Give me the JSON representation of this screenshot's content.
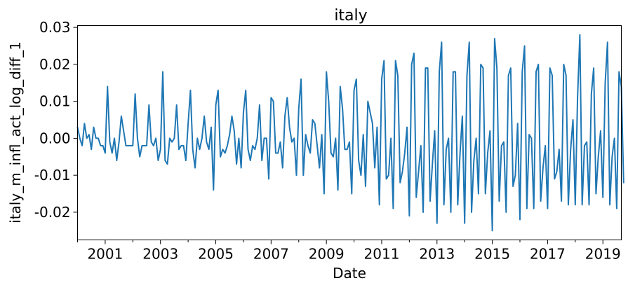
{
  "chart_data": {
    "type": "line",
    "title": "italy",
    "xlabel": "Date",
    "ylabel": "italy_m_infl_act_log_diff_1",
    "xlim": [
      "2000-01",
      "2019-09"
    ],
    "ylim": [
      -0.0275,
      0.0305
    ],
    "x_ticks": [
      "2001",
      "2003",
      "2005",
      "2007",
      "2009",
      "2011",
      "2013",
      "2015",
      "2017",
      "2019"
    ],
    "y_ticks": [
      "0.03",
      "0.02",
      "0.01",
      "0.00",
      "-0.01",
      "-0.02"
    ],
    "y_tick_values": [
      0.03,
      0.02,
      0.01,
      0.0,
      -0.01,
      -0.02
    ],
    "grid": false,
    "legend": "none",
    "series": [
      {
        "color": "#1f77b4",
        "start": "2000-01",
        "frequency": "monthly",
        "values": [
          0.003,
          0.0,
          -0.002,
          0.004,
          0.0,
          0.001,
          -0.003,
          0.003,
          0.0,
          0.0,
          -0.002,
          -0.002,
          -0.004,
          0.014,
          -0.001,
          -0.004,
          0.0,
          -0.006,
          -0.001,
          0.006,
          0.002,
          -0.002,
          -0.002,
          -0.002,
          -0.002,
          0.012,
          0.0,
          -0.005,
          -0.002,
          -0.002,
          -0.002,
          0.009,
          -0.001,
          -0.002,
          0.0,
          -0.006,
          -0.003,
          0.018,
          -0.006,
          -0.007,
          0.0,
          -0.001,
          0.0,
          0.009,
          -0.003,
          -0.002,
          -0.002,
          -0.006,
          0.004,
          0.013,
          -0.003,
          -0.008,
          0.0,
          -0.003,
          0.0,
          0.006,
          -0.001,
          -0.003,
          0.003,
          -0.014,
          0.009,
          0.013,
          -0.005,
          -0.003,
          -0.004,
          -0.002,
          0.001,
          0.006,
          0.002,
          -0.007,
          0.0,
          -0.008,
          0.007,
          0.013,
          -0.003,
          -0.006,
          -0.002,
          -0.003,
          0.0,
          0.009,
          -0.006,
          0.0,
          0.0,
          -0.011,
          0.011,
          0.01,
          -0.004,
          -0.004,
          -0.001,
          -0.008,
          0.006,
          0.011,
          0.003,
          -0.001,
          0.0,
          -0.01,
          0.008,
          0.016,
          -0.01,
          0.001,
          -0.002,
          -0.004,
          0.005,
          0.004,
          -0.002,
          -0.008,
          0.001,
          -0.015,
          0.018,
          0.01,
          -0.004,
          -0.005,
          0.0,
          -0.014,
          0.014,
          0.008,
          -0.003,
          -0.003,
          -0.001,
          -0.015,
          0.013,
          0.016,
          -0.006,
          -0.01,
          0.001,
          -0.013,
          0.01,
          0.007,
          0.004,
          -0.008,
          0.003,
          -0.018,
          0.016,
          0.021,
          -0.011,
          -0.01,
          0.0,
          -0.019,
          0.021,
          0.017,
          -0.012,
          -0.009,
          -0.004,
          0.003,
          -0.021,
          0.02,
          0.023,
          -0.016,
          -0.009,
          -0.002,
          -0.02,
          0.019,
          0.019,
          -0.017,
          -0.007,
          0.002,
          -0.023,
          0.018,
          0.026,
          -0.018,
          -0.003,
          0.0,
          -0.02,
          0.018,
          0.018,
          -0.018,
          -0.004,
          0.006,
          -0.023,
          0.017,
          0.026,
          -0.02,
          -0.006,
          0.0,
          -0.015,
          0.02,
          0.019,
          -0.015,
          -0.004,
          0.002,
          -0.025,
          0.027,
          0.019,
          -0.017,
          -0.002,
          -0.001,
          -0.02,
          0.017,
          0.019,
          -0.013,
          -0.01,
          0.004,
          -0.022,
          0.018,
          0.025,
          -0.019,
          0.001,
          0.0,
          -0.019,
          0.018,
          0.02,
          -0.017,
          -0.008,
          -0.002,
          -0.019,
          0.019,
          0.017,
          -0.011,
          -0.009,
          -0.003,
          -0.017,
          0.02,
          0.017,
          -0.018,
          -0.003,
          0.005,
          -0.018,
          0.011,
          0.028,
          -0.018,
          -0.002,
          -0.001,
          -0.018,
          0.012,
          0.019,
          -0.015,
          -0.005,
          0.002,
          -0.016,
          0.015,
          0.026,
          -0.018,
          -0.005,
          0.0,
          -0.019,
          0.018,
          0.014,
          -0.012
        ]
      }
    ]
  }
}
